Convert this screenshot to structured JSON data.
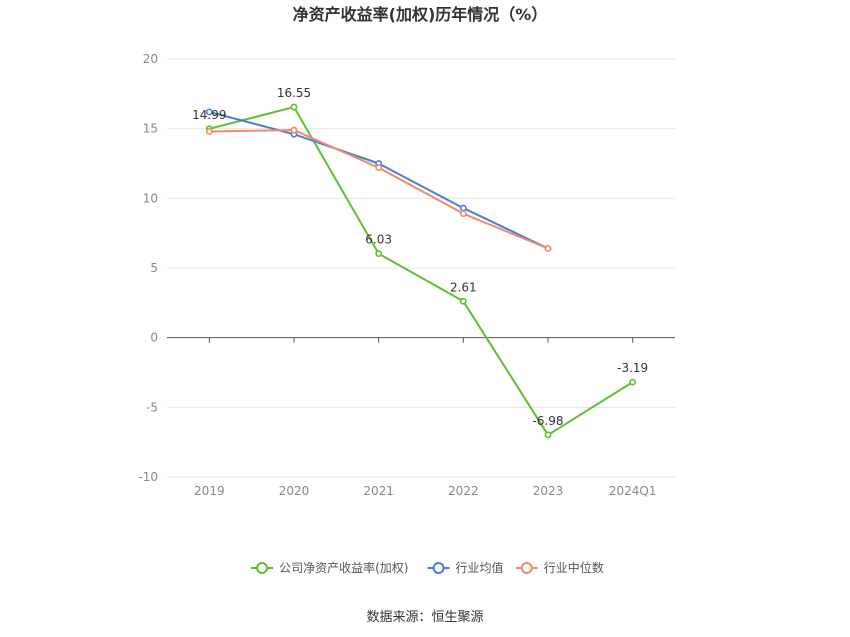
{
  "chart_data": {
    "type": "line",
    "title": "净资产收益率(加权)历年情况（%）",
    "categories": [
      "2019",
      "2020",
      "2021",
      "2022",
      "2023",
      "2024Q1"
    ],
    "ylim": [
      -10,
      20
    ],
    "yticks": [
      20,
      15,
      10,
      5,
      0,
      -5,
      -10
    ],
    "grid": true,
    "legend_placement": "bottom",
    "series": [
      {
        "name": "公司净资产收益率(加权)",
        "color": "#5cc031",
        "values": [
          14.99,
          16.55,
          6.03,
          2.61,
          -6.98,
          -3.19
        ],
        "labels": [
          "14.99",
          "16.55",
          "6.03",
          "2.61",
          "-6.98",
          "-3.19"
        ]
      },
      {
        "name": "行业均值",
        "color": "#4a7fd4",
        "values": [
          16.2,
          14.6,
          12.5,
          9.3,
          6.4,
          null
        ]
      },
      {
        "name": "行业中位数",
        "color": "#f08a6a",
        "values": [
          14.8,
          14.9,
          12.2,
          8.9,
          6.4,
          null
        ]
      }
    ],
    "source": "数据来源：恒生聚源"
  }
}
